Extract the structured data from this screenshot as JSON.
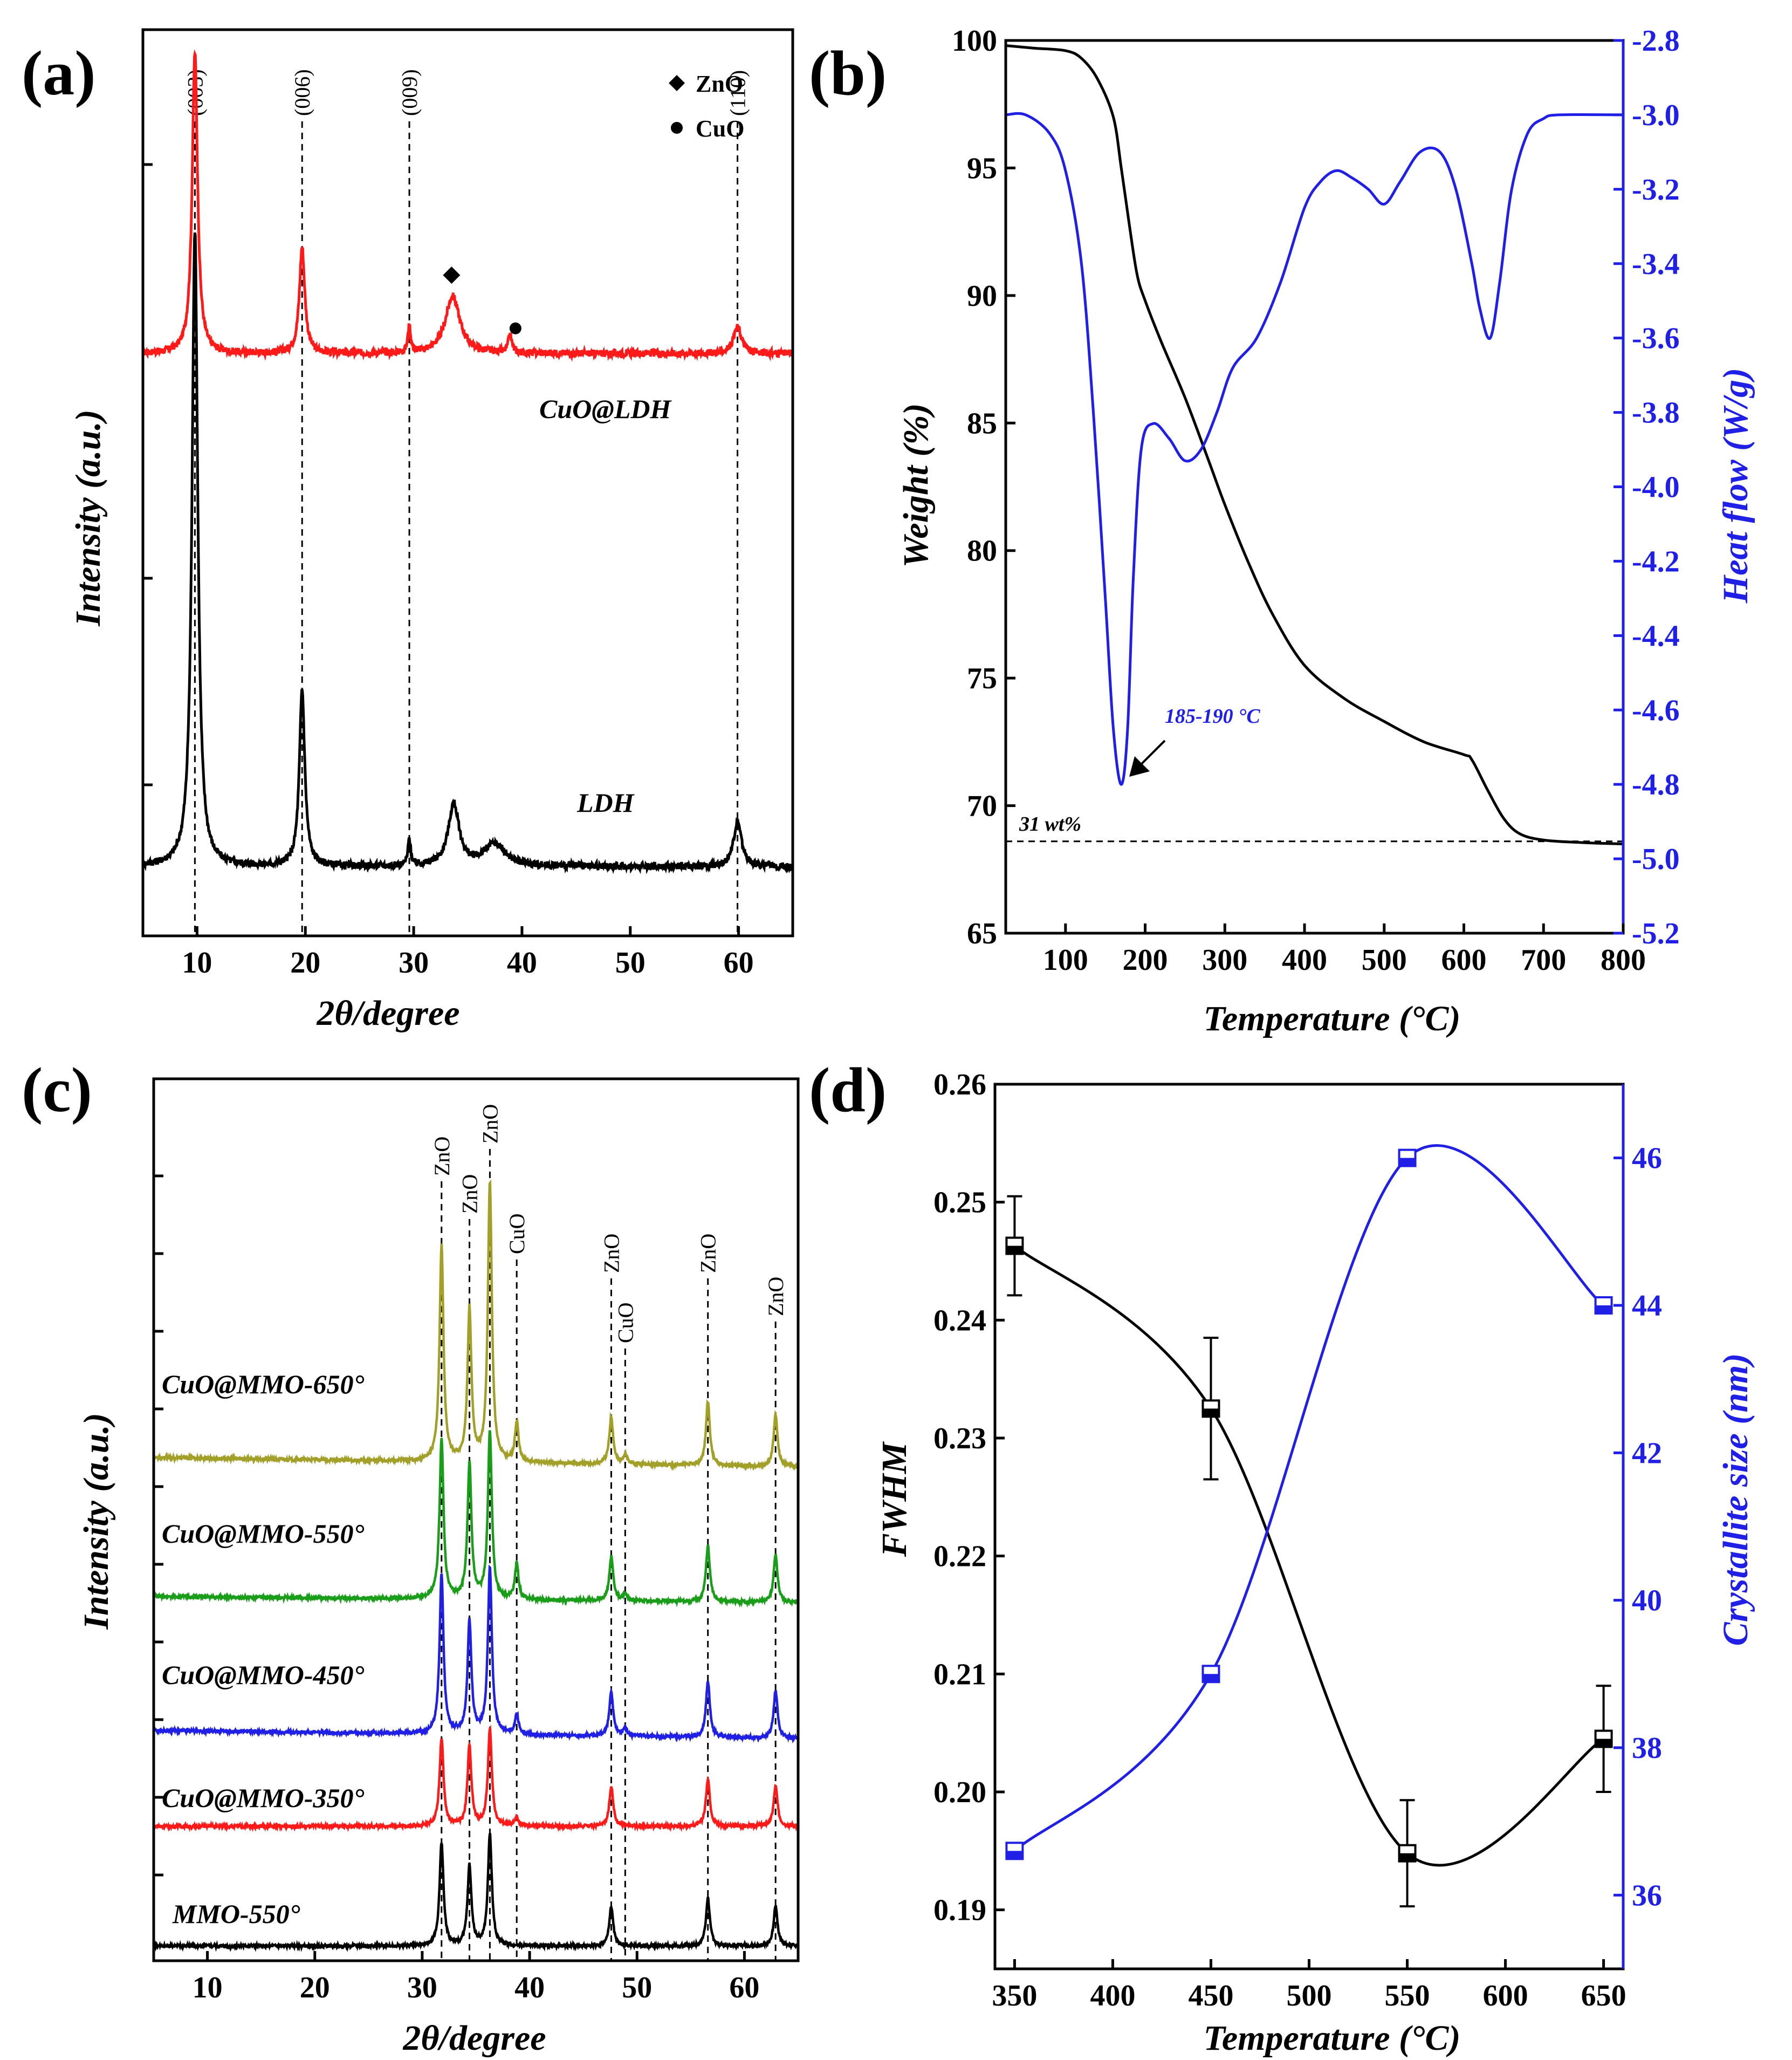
{
  "figure": {
    "colors": {
      "black": "#000000",
      "red": "#ff1a1a",
      "blue": "#1f1fe6",
      "green": "#1a9e1a",
      "olive": "#a3a02a"
    }
  },
  "chart_data": [
    {
      "id": "a",
      "type": "line",
      "panel_label": "(a)",
      "xlabel": "2θ/degree",
      "ylabel": "Intensity (a.u.)",
      "xlim": [
        5,
        65
      ],
      "xticks": [
        10,
        20,
        30,
        40,
        50,
        60
      ],
      "peak_labels": [
        {
          "x": 9.8,
          "text": "(003)"
        },
        {
          "x": 19.7,
          "text": "(006)"
        },
        {
          "x": 29.6,
          "text": "(009)"
        },
        {
          "x": 59.9,
          "text": "(110)"
        }
      ],
      "legend": [
        {
          "marker": "diamond",
          "label": "ZnO"
        },
        {
          "marker": "circle",
          "label": "CuO"
        }
      ],
      "series": [
        {
          "name": "CuO@LDH",
          "color": "#ff1a1a",
          "baseline": 0.64,
          "noise": 0.004,
          "peaks": [
            [
              9.8,
              0.3,
              0.34
            ],
            [
              19.7,
              0.3,
              0.12
            ],
            [
              29.6,
              0.15,
              0.03
            ],
            [
              33.6,
              0.8,
              0.065
            ],
            [
              38.9,
              0.2,
              0.02
            ],
            [
              59.9,
              0.45,
              0.03
            ]
          ],
          "markers": [
            {
              "x": 33.5,
              "marker": "diamond",
              "label": "ZnO"
            },
            {
              "x": 39.4,
              "marker": "circle",
              "label": "CuO"
            }
          ]
        },
        {
          "name": "LDH",
          "color": "#000000",
          "baseline": 0.06,
          "noise": 0.004,
          "peaks": [
            [
              9.8,
              0.32,
              0.72
            ],
            [
              19.7,
              0.3,
              0.2
            ],
            [
              29.6,
              0.15,
              0.03
            ],
            [
              33.7,
              0.6,
              0.07
            ],
            [
              37.5,
              1.2,
              0.025
            ],
            [
              59.9,
              0.45,
              0.05
            ]
          ],
          "markers": []
        }
      ]
    },
    {
      "id": "b",
      "type": "line",
      "panel_label": "(b)",
      "xlabel": "Temperature (°C)",
      "ylabel": "Weight (%)",
      "y2label": "Heat flow (W/g)",
      "xlim": [
        25,
        800
      ],
      "ylim": [
        65,
        100
      ],
      "y2lim": [
        -5.2,
        -2.8
      ],
      "xticks": [
        100,
        200,
        300,
        400,
        500,
        600,
        700,
        800
      ],
      "yticks": [
        65,
        70,
        75,
        80,
        85,
        90,
        95,
        100
      ],
      "y2ticks": [
        -5.2,
        -5.0,
        -4.8,
        -4.6,
        -4.4,
        -4.2,
        -4.0,
        -3.8,
        -3.6,
        -3.4,
        -3.2,
        -3.0,
        -2.8
      ],
      "series": [
        {
          "name": "Weight",
          "axis": "left",
          "color": "#000000",
          "x": [
            25,
            60,
            100,
            120,
            140,
            160,
            170,
            180,
            190,
            200,
            220,
            250,
            280,
            300,
            330,
            360,
            400,
            450,
            500,
            550,
            600,
            610,
            630,
            650,
            670,
            700,
            750,
            800
          ],
          "y": [
            99.8,
            99.7,
            99.6,
            99.3,
            98.5,
            97.0,
            95.0,
            92.8,
            90.8,
            89.8,
            88.2,
            86.0,
            83.5,
            81.8,
            79.5,
            77.5,
            75.5,
            74.2,
            73.3,
            72.5,
            72.0,
            71.8,
            70.6,
            69.5,
            68.9,
            68.65,
            68.55,
            68.5
          ]
        },
        {
          "name": "Heat flow",
          "axis": "right",
          "color": "#1f1fe6",
          "x": [
            25,
            50,
            80,
            100,
            120,
            135,
            150,
            160,
            170,
            178,
            185,
            195,
            210,
            230,
            250,
            270,
            290,
            310,
            340,
            370,
            400,
            420,
            440,
            460,
            480,
            500,
            520,
            545,
            570,
            590,
            610,
            620,
            633,
            645,
            660,
            680,
            700,
            720,
            800
          ],
          "y": [
            -3.0,
            -3.0,
            -3.05,
            -3.15,
            -3.4,
            -3.8,
            -4.3,
            -4.65,
            -4.8,
            -4.65,
            -4.25,
            -3.9,
            -3.83,
            -3.87,
            -3.93,
            -3.9,
            -3.8,
            -3.68,
            -3.6,
            -3.45,
            -3.25,
            -3.18,
            -3.15,
            -3.17,
            -3.2,
            -3.24,
            -3.18,
            -3.1,
            -3.1,
            -3.2,
            -3.4,
            -3.52,
            -3.6,
            -3.45,
            -3.2,
            -3.05,
            -3.01,
            -3.0,
            -3.0
          ]
        }
      ],
      "reference_line": {
        "y": 68.6,
        "label": "31 wt%"
      },
      "annotation": {
        "text": "185-190 °C",
        "x": 175,
        "y": -4.8
      }
    },
    {
      "id": "c",
      "type": "line",
      "panel_label": "(c)",
      "xlabel": "2θ/degree",
      "ylabel": "Intensity (a.u.)",
      "xlim": [
        5,
        65
      ],
      "xticks": [
        10,
        20,
        30,
        40,
        50,
        60
      ],
      "peak_labels": [
        {
          "x": 31.8,
          "text": "ZnO"
        },
        {
          "x": 34.4,
          "text": "ZnO"
        },
        {
          "x": 36.3,
          "text": "ZnO"
        },
        {
          "x": 38.8,
          "text": "CuO"
        },
        {
          "x": 47.6,
          "text": "ZnO"
        },
        {
          "x": 48.9,
          "text": "CuO"
        },
        {
          "x": 56.6,
          "text": "ZnO"
        },
        {
          "x": 62.9,
          "text": "ZnO"
        }
      ],
      "series": [
        {
          "name": "CuO@MMO-650°",
          "color": "#a3a02a",
          "baseline": 0.615,
          "baseline_slope": 0.012,
          "peaks": [
            [
              31.8,
              0.22,
              0.27
            ],
            [
              34.4,
              0.22,
              0.19
            ],
            [
              36.3,
              0.22,
              0.35
            ],
            [
              38.8,
              0.2,
              0.05
            ],
            [
              47.6,
              0.22,
              0.06
            ],
            [
              48.9,
              0.2,
              0.012
            ],
            [
              56.6,
              0.22,
              0.08
            ],
            [
              62.9,
              0.22,
              0.065
            ]
          ]
        },
        {
          "name": "CuO@MMO-550°",
          "color": "#1a9e1a",
          "baseline": 0.445,
          "baseline_slope": 0.008,
          "peaks": [
            [
              31.8,
              0.22,
              0.2
            ],
            [
              34.4,
              0.22,
              0.17
            ],
            [
              36.3,
              0.22,
              0.21
            ],
            [
              38.8,
              0.2,
              0.045
            ],
            [
              47.6,
              0.22,
              0.055
            ],
            [
              48.9,
              0.2,
              0.01
            ],
            [
              56.6,
              0.22,
              0.07
            ],
            [
              62.9,
              0.22,
              0.06
            ]
          ]
        },
        {
          "name": "CuO@MMO-450°",
          "color": "#1f1fe6",
          "baseline": 0.275,
          "baseline_slope": 0.01,
          "peaks": [
            [
              31.8,
              0.22,
              0.2
            ],
            [
              34.4,
              0.22,
              0.14
            ],
            [
              36.3,
              0.22,
              0.21
            ],
            [
              38.8,
              0.2,
              0.025
            ],
            [
              47.6,
              0.22,
              0.055
            ],
            [
              48.9,
              0.2,
              0.01
            ],
            [
              56.6,
              0.22,
              0.07
            ],
            [
              62.9,
              0.22,
              0.06
            ]
          ]
        },
        {
          "name": "CuO@MMO-350°",
          "color": "#ff1a1a",
          "baseline": 0.165,
          "baseline_slope": 0.0,
          "peaks": [
            [
              31.8,
              0.22,
              0.11
            ],
            [
              34.4,
              0.22,
              0.1
            ],
            [
              36.3,
              0.22,
              0.12
            ],
            [
              38.8,
              0.2,
              0.01
            ],
            [
              47.6,
              0.22,
              0.05
            ],
            [
              56.6,
              0.22,
              0.06
            ],
            [
              62.9,
              0.22,
              0.05
            ]
          ]
        },
        {
          "name": "MMO-550°",
          "color": "#000000",
          "baseline": 0.015,
          "baseline_slope": 0.0,
          "peaks": [
            [
              31.8,
              0.22,
              0.13
            ],
            [
              34.4,
              0.22,
              0.1
            ],
            [
              36.3,
              0.22,
              0.14
            ],
            [
              47.6,
              0.22,
              0.05
            ],
            [
              56.6,
              0.22,
              0.06
            ],
            [
              62.9,
              0.22,
              0.05
            ]
          ]
        }
      ]
    },
    {
      "id": "d",
      "type": "line",
      "panel_label": "(d)",
      "xlabel": "Temperature (°C)",
      "ylabel": "FWHM",
      "y2label": "Crystallite size (nm)",
      "xlim": [
        340,
        660
      ],
      "ylim": [
        0.185,
        0.26
      ],
      "y2lim": [
        35,
        47
      ],
      "xticks": [
        350,
        400,
        450,
        500,
        550,
        600,
        650
      ],
      "yticks": [
        0.19,
        0.2,
        0.21,
        0.22,
        0.23,
        0.24,
        0.25,
        0.26
      ],
      "y2ticks": [
        36,
        38,
        40,
        42,
        44,
        46
      ],
      "series": [
        {
          "name": "FWHM",
          "axis": "left",
          "color": "#000000",
          "x": [
            350,
            450,
            550,
            650
          ],
          "y": [
            0.2463,
            0.2325,
            0.1948,
            0.2045
          ],
          "error": [
            0.0042,
            0.006,
            0.0045,
            0.0045
          ]
        },
        {
          "name": "Crystallite size",
          "axis": "right",
          "color": "#1f1fe6",
          "x": [
            350,
            450,
            550,
            650
          ],
          "y": [
            36.6,
            39.0,
            46.0,
            44.0
          ]
        }
      ]
    }
  ]
}
